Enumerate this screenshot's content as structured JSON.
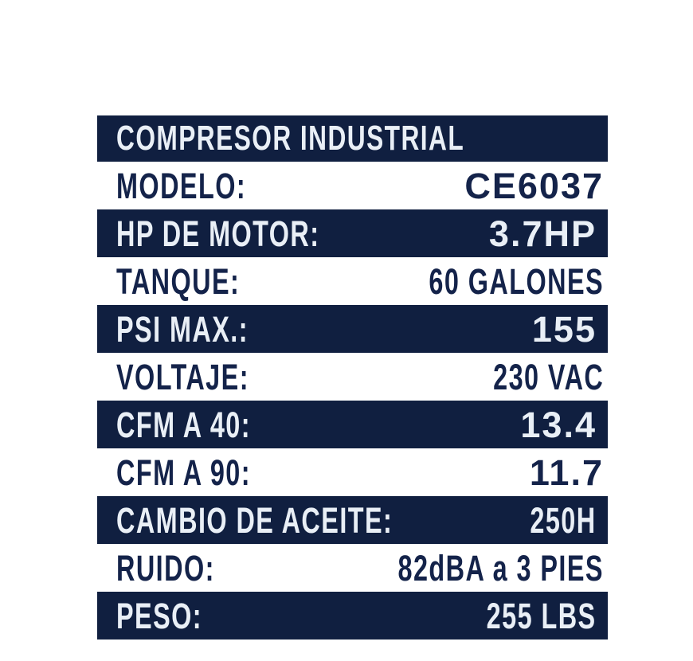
{
  "colors": {
    "navy": "#101f40",
    "text_on_navy": "#e9eff6",
    "text_navy": "#14234a",
    "background": "#ffffff"
  },
  "table": {
    "header": "COMPRESOR INDUSTRIAL",
    "rows": [
      {
        "label": "MODELO:",
        "value": "CE6037"
      },
      {
        "label": "HP DE MOTOR:",
        "value": "3.7HP"
      },
      {
        "label": "TANQUE:",
        "value": "60 GALONES"
      },
      {
        "label": "PSI MAX.:",
        "value": "155"
      },
      {
        "label": "VOLTAJE:",
        "value": "230 VAC"
      },
      {
        "label": "CFM A 40:",
        "value": "13.4"
      },
      {
        "label": "CFM A 90:",
        "value": "11.7"
      },
      {
        "label": "CAMBIO DE ACEITE:",
        "value": "250H"
      },
      {
        "label": "RUIDO:",
        "value": "82dBA a 3 PIES"
      },
      {
        "label": "PESO:",
        "value": "255 LBS"
      }
    ]
  }
}
